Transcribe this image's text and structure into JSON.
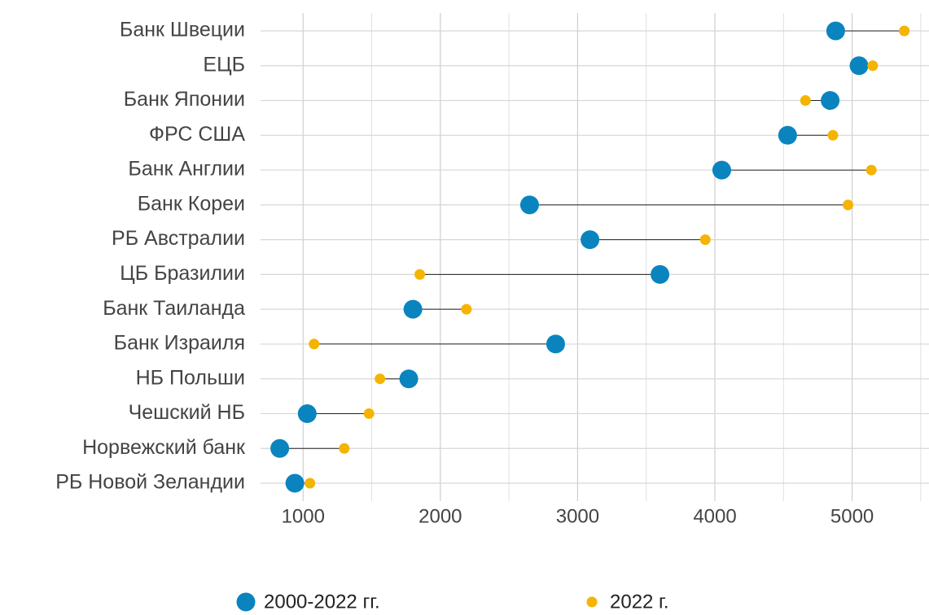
{
  "chart_data": {
    "type": "dumbbell",
    "categories": [
      "Банк Швеции",
      "ЕЦБ",
      "Банк Японии",
      "ФРС США",
      "Банк Англии",
      "Банк Кореи",
      "РБ Австралии",
      "ЦБ Бразилии",
      "Банк Таиланда",
      "Банк Израиля",
      "НБ Польши",
      "Чешский НБ",
      "Норвежский банк",
      "РБ Новой Зеландии"
    ],
    "series": [
      {
        "name": "2000-2022 гг.",
        "color": "#0a84bf",
        "values": [
          4880,
          5050,
          4840,
          4530,
          4050,
          2650,
          3090,
          3600,
          1800,
          2840,
          1770,
          1030,
          830,
          940
        ]
      },
      {
        "name": "2022 г.",
        "color": "#f5b400",
        "values": [
          5380,
          5150,
          4660,
          4860,
          5140,
          4970,
          3930,
          1850,
          2190,
          1080,
          1560,
          1480,
          1300,
          1050
        ]
      }
    ],
    "xlim": [
      690,
      5560
    ],
    "xticks": [
      1000,
      2000,
      3000,
      4000,
      5000
    ],
    "xminor": [
      1500,
      2500,
      3500,
      4500,
      5500
    ],
    "grid": true,
    "legend": "bottom"
  }
}
